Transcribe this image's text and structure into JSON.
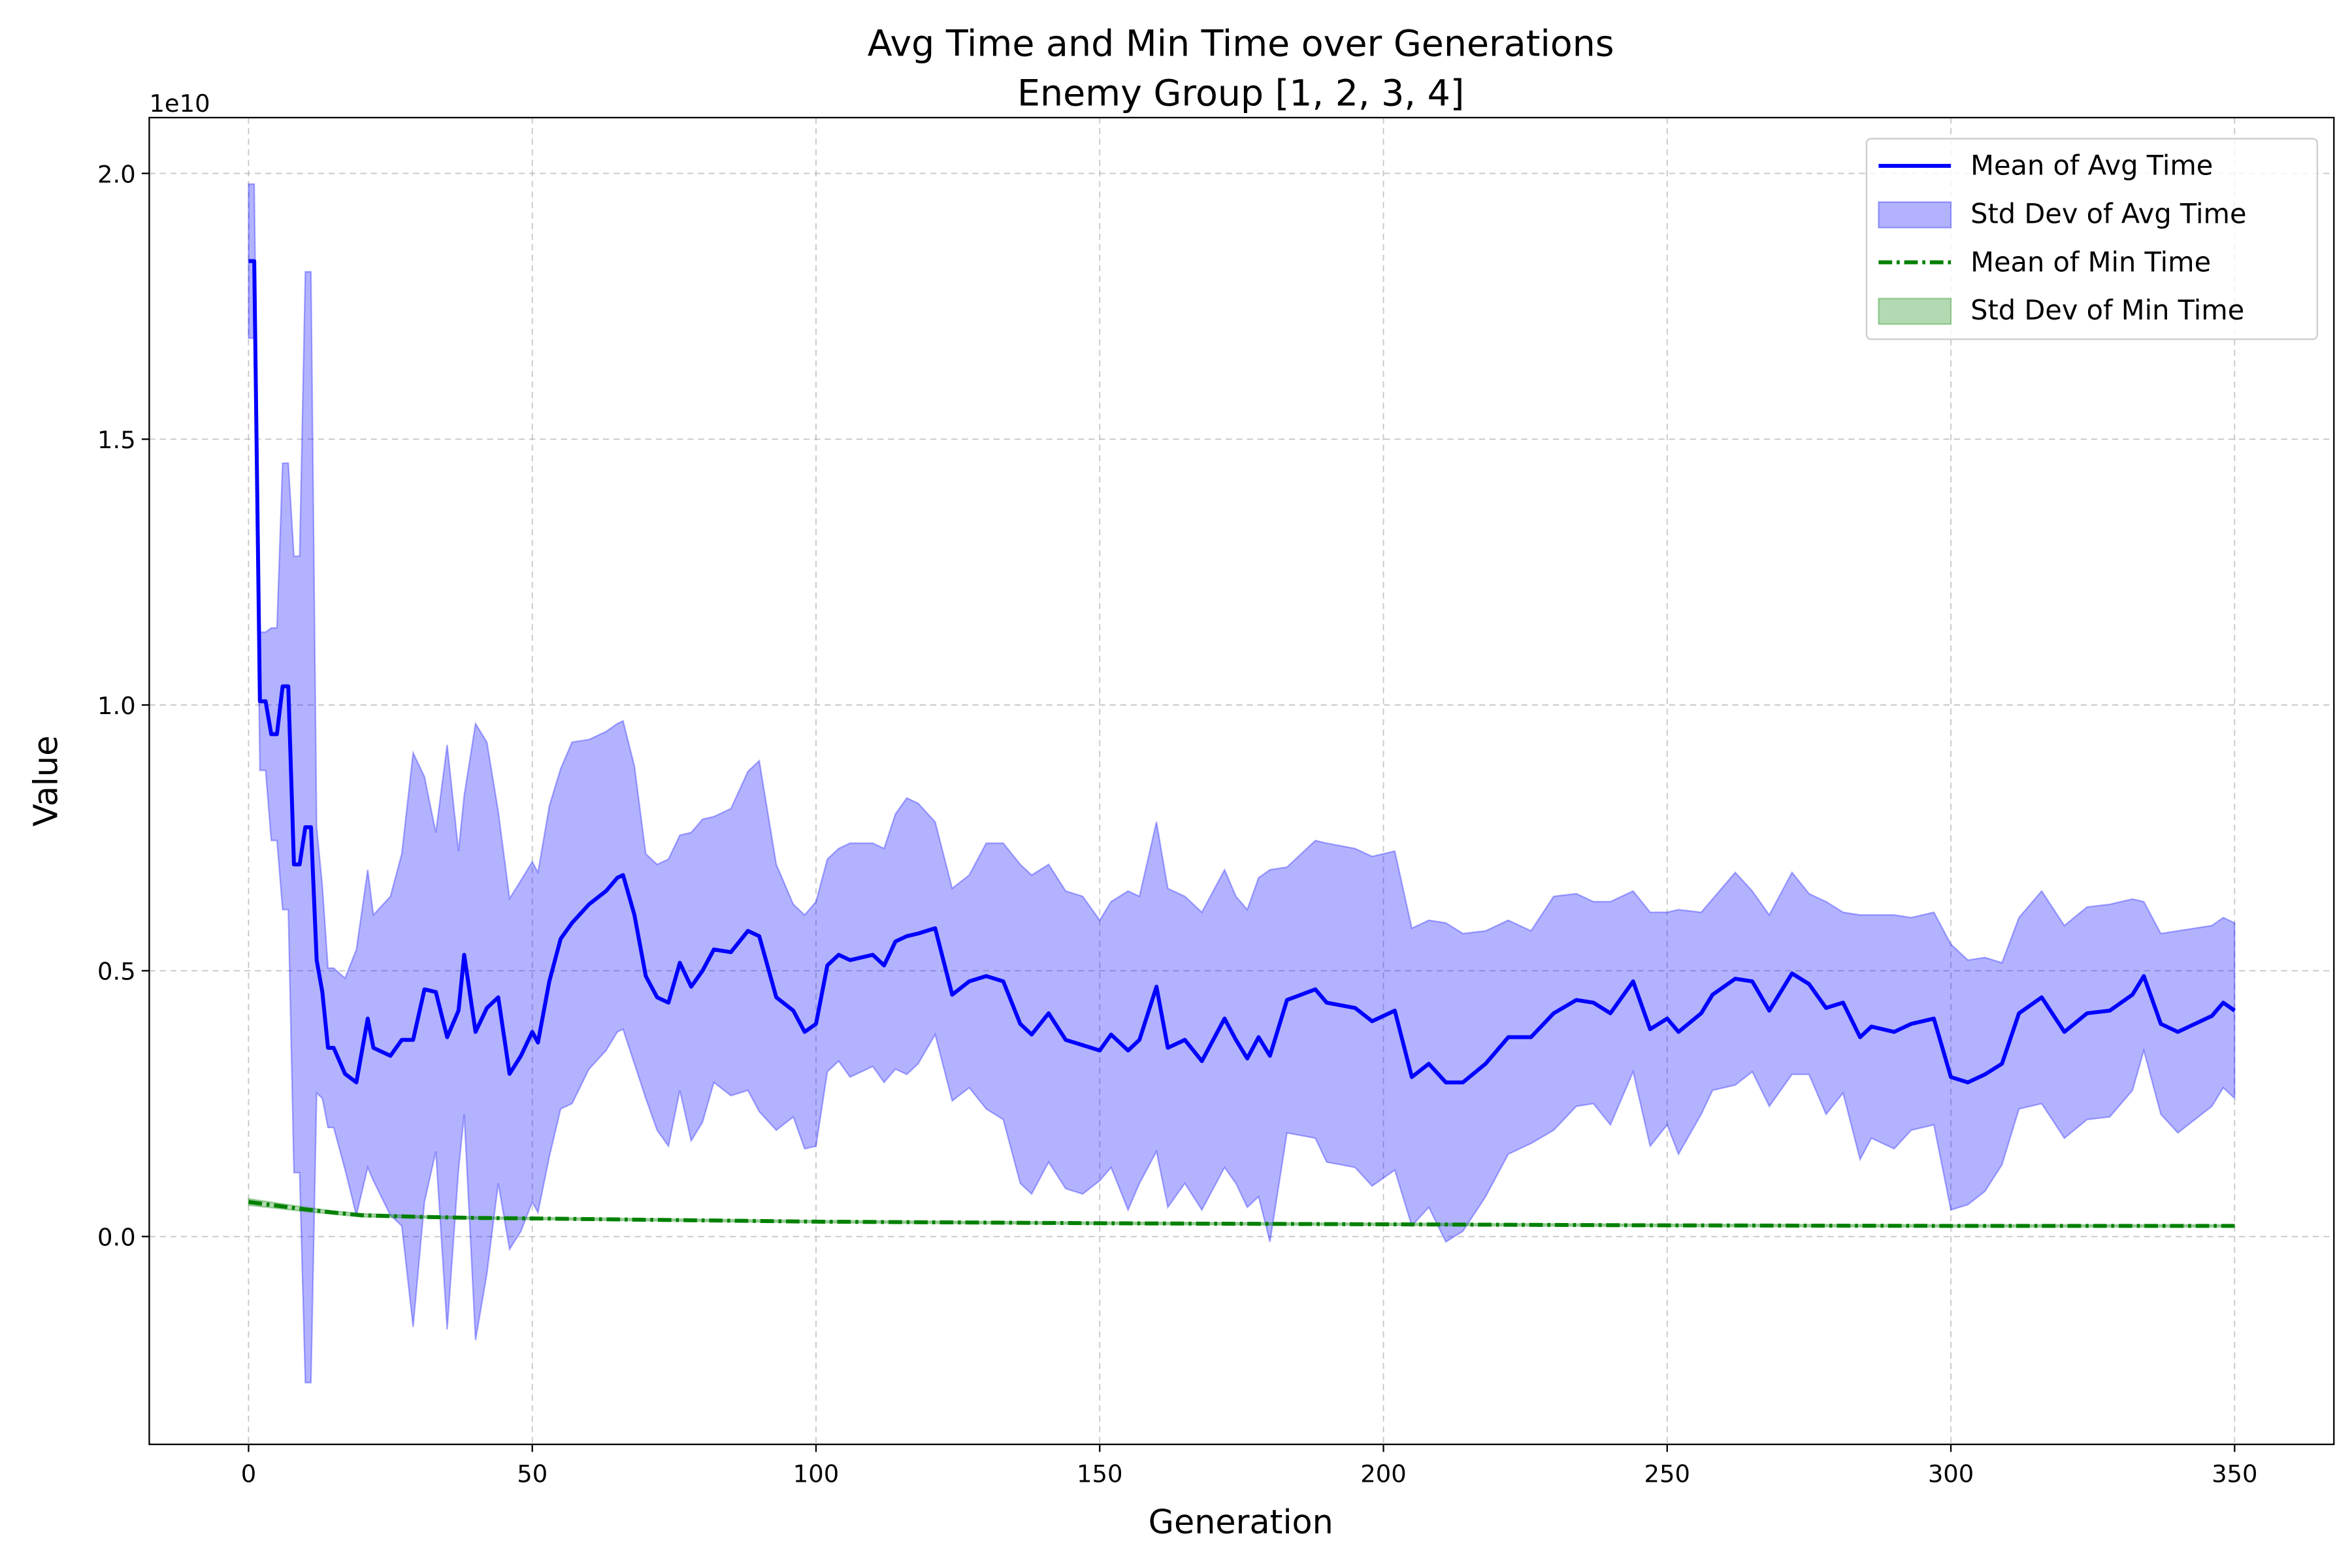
{
  "chart_data": {
    "type": "line",
    "title": "Avg Time and Min Time over Generations",
    "subtitle": "Enemy Group [1, 2, 3, 4]",
    "xlabel": "Generation",
    "ylabel": "Value",
    "y_offset_label": "1e10",
    "xlim": [
      -17.5,
      367.5
    ],
    "ylim": [
      -0.391,
      2.105
    ],
    "xticks": [
      0,
      50,
      100,
      150,
      200,
      250,
      300,
      350
    ],
    "yticks": [
      {
        "value": 0,
        "label": "0.0"
      },
      0.5,
      {
        "value": 1,
        "label": "1.0"
      },
      1.5,
      {
        "value": 2,
        "label": "2.0"
      }
    ],
    "grid": true,
    "legend": "upper right",
    "series": [
      {
        "name": "Mean of Avg Time",
        "color": "#0000ff",
        "linestyle": "solid",
        "std_name": "Std Dev of Avg Time",
        "band_alpha": 0.3,
        "x": [
          0,
          1,
          2,
          3,
          4,
          5,
          6,
          7,
          8,
          9,
          10,
          11,
          12,
          13,
          14,
          15,
          17,
          19,
          21,
          22,
          25,
          27,
          29,
          31,
          33,
          35,
          37,
          38,
          40,
          42,
          44,
          46,
          48,
          50,
          51,
          53,
          55,
          57,
          60,
          63,
          65,
          66,
          68,
          70,
          72,
          74,
          76,
          78,
          80,
          82,
          85,
          88,
          90,
          93,
          96,
          98,
          100,
          102,
          104,
          106,
          110,
          112,
          114,
          116,
          118,
          121,
          124,
          127,
          130,
          133,
          136,
          138,
          141,
          144,
          147,
          150,
          152,
          155,
          157,
          160,
          162,
          165,
          168,
          172,
          174,
          176,
          178,
          180,
          183,
          188,
          190,
          195,
          198,
          202,
          205,
          208,
          211,
          214,
          218,
          222,
          226,
          230,
          234,
          237,
          240,
          244,
          247,
          250,
          252,
          256,
          258,
          262,
          265,
          268,
          272,
          275,
          278,
          281,
          284,
          286,
          290,
          293,
          297,
          300,
          303,
          306,
          309,
          312,
          316,
          320,
          324,
          328,
          332,
          334,
          337,
          340,
          343,
          346,
          348,
          350
        ],
        "values": [
          1.835,
          1.835,
          1.007,
          1.007,
          0.945,
          0.945,
          1.035,
          1.035,
          0.7,
          0.7,
          0.77,
          0.77,
          0.52,
          0.46,
          0.355,
          0.355,
          0.306,
          0.29,
          0.41,
          0.355,
          0.34,
          0.37,
          0.37,
          0.465,
          0.46,
          0.375,
          0.425,
          0.53,
          0.385,
          0.43,
          0.45,
          0.306,
          0.34,
          0.385,
          0.365,
          0.48,
          0.56,
          0.59,
          0.625,
          0.65,
          0.675,
          0.68,
          0.605,
          0.49,
          0.45,
          0.44,
          0.515,
          0.47,
          0.5,
          0.54,
          0.535,
          0.575,
          0.565,
          0.45,
          0.425,
          0.385,
          0.4,
          0.51,
          0.53,
          0.52,
          0.53,
          0.51,
          0.555,
          0.565,
          0.57,
          0.58,
          0.455,
          0.48,
          0.49,
          0.48,
          0.4,
          0.38,
          0.42,
          0.37,
          0.36,
          0.35,
          0.38,
          0.35,
          0.37,
          0.47,
          0.355,
          0.37,
          0.33,
          0.41,
          0.37,
          0.335,
          0.375,
          0.34,
          0.445,
          0.465,
          0.44,
          0.43,
          0.405,
          0.425,
          0.3,
          0.325,
          0.29,
          0.29,
          0.325,
          0.375,
          0.375,
          0.42,
          0.445,
          0.44,
          0.42,
          0.48,
          0.39,
          0.41,
          0.385,
          0.42,
          0.455,
          0.485,
          0.48,
          0.425,
          0.495,
          0.475,
          0.43,
          0.44,
          0.375,
          0.395,
          0.385,
          0.4,
          0.41,
          0.3,
          0.29,
          0.305,
          0.325,
          0.42,
          0.45,
          0.385,
          0.42,
          0.425,
          0.455,
          0.49,
          0.4,
          0.385,
          0.4,
          0.415,
          0.44,
          0.425
        ],
        "std": [
          0.145,
          0.145,
          0.13,
          0.13,
          0.2,
          0.2,
          0.42,
          0.42,
          0.58,
          0.58,
          1.045,
          1.045,
          0.25,
          0.2,
          0.15,
          0.15,
          0.18,
          0.25,
          0.28,
          0.25,
          0.3,
          0.35,
          0.54,
          0.4,
          0.3,
          0.55,
          0.3,
          0.3,
          0.58,
          0.5,
          0.35,
          0.33,
          0.33,
          0.32,
          0.32,
          0.33,
          0.32,
          0.34,
          0.31,
          0.3,
          0.29,
          0.29,
          0.28,
          0.23,
          0.25,
          0.27,
          0.24,
          0.29,
          0.285,
          0.25,
          0.27,
          0.3,
          0.33,
          0.25,
          0.2,
          0.22,
          0.23,
          0.2,
          0.2,
          0.22,
          0.21,
          0.22,
          0.24,
          0.26,
          0.245,
          0.2,
          0.2,
          0.2,
          0.25,
          0.26,
          0.3,
          0.3,
          0.28,
          0.28,
          0.28,
          0.245,
          0.25,
          0.3,
          0.27,
          0.31,
          0.3,
          0.27,
          0.28,
          0.28,
          0.27,
          0.28,
          0.3,
          0.35,
          0.25,
          0.28,
          0.3,
          0.3,
          0.31,
          0.3,
          0.28,
          0.27,
          0.3,
          0.28,
          0.25,
          0.22,
          0.2,
          0.22,
          0.2,
          0.19,
          0.21,
          0.17,
          0.22,
          0.2,
          0.23,
          0.19,
          0.18,
          0.2,
          0.17,
          0.18,
          0.19,
          0.17,
          0.2,
          0.17,
          0.23,
          0.21,
          0.22,
          0.2,
          0.2,
          0.25,
          0.23,
          0.22,
          0.19,
          0.18,
          0.2,
          0.2,
          0.2,
          0.2,
          0.18,
          0.14,
          0.17,
          0.19,
          0.18,
          0.17,
          0.16,
          0.165
        ]
      },
      {
        "name": "Mean of Min Time",
        "color": "#008000",
        "linestyle": "dashdot",
        "std_name": "Std Dev of Min Time",
        "band_alpha": 0.3,
        "x": [
          0,
          5,
          10,
          15,
          20,
          30,
          40,
          50,
          75,
          100,
          150,
          200,
          250,
          300,
          350
        ],
        "values": [
          0.065,
          0.058,
          0.051,
          0.045,
          0.04,
          0.037,
          0.035,
          0.034,
          0.031,
          0.028,
          0.025,
          0.023,
          0.021,
          0.02,
          0.02
        ],
        "std": [
          0.006,
          0.005,
          0.004,
          0.003,
          0.003,
          0.002,
          0.002,
          0.002,
          0.002,
          0.002,
          0.002,
          0.002,
          0.002,
          0.002,
          0.002
        ]
      }
    ]
  }
}
